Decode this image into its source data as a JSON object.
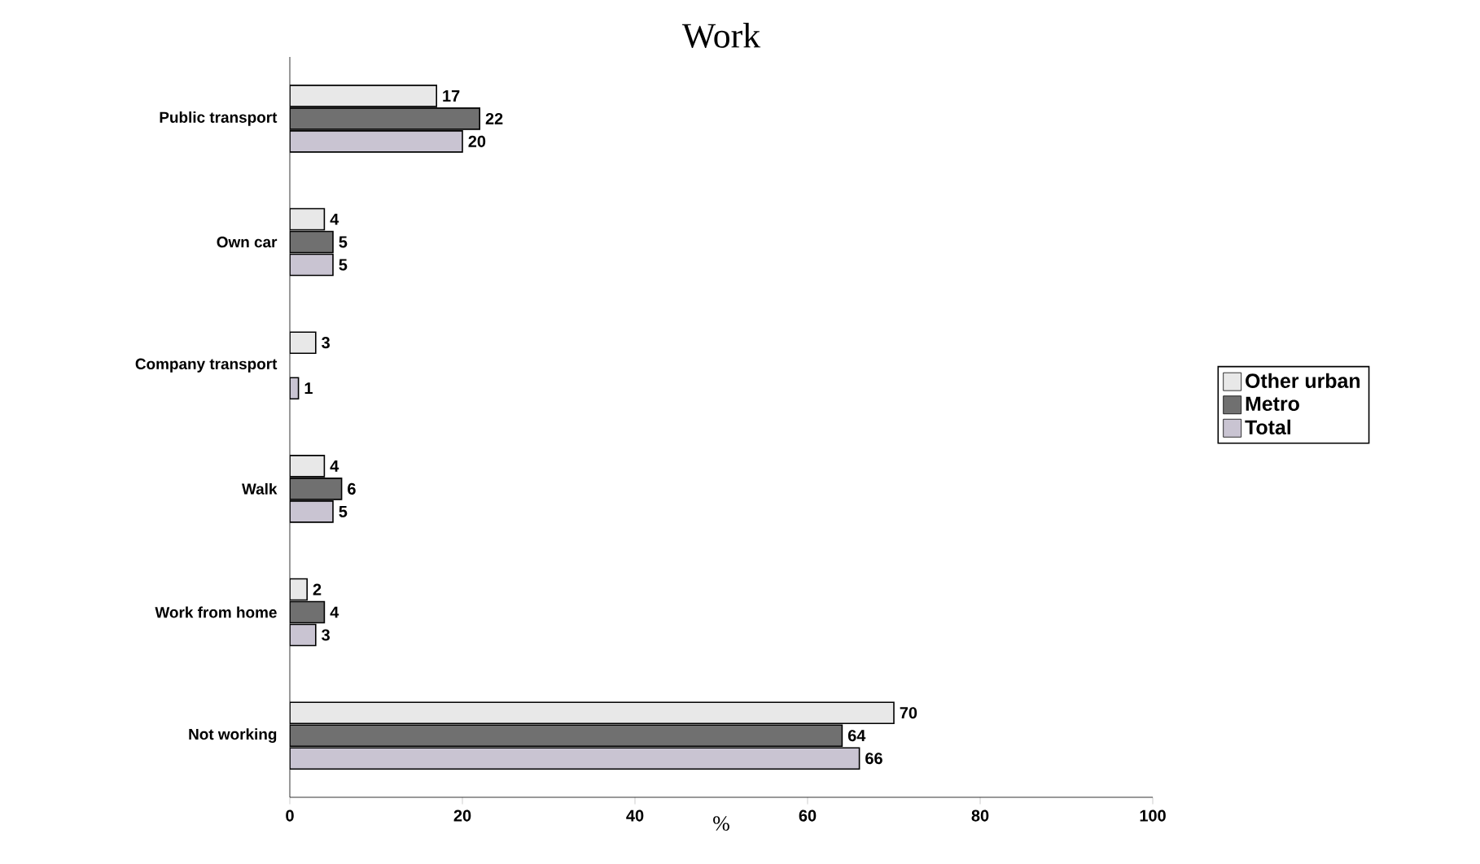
{
  "chart_data": {
    "type": "bar",
    "orientation": "horizontal",
    "title": "Work",
    "xlabel": "%",
    "categories": [
      "Public transport",
      "Own car",
      "Company transport",
      "Walk",
      "Work from home",
      "Not working"
    ],
    "series": [
      {
        "name": "Other urban",
        "color": "#e8e8e8",
        "values": [
          17,
          4,
          3,
          4,
          2,
          70
        ]
      },
      {
        "name": "Metro",
        "color": "#707070",
        "values": [
          22,
          5,
          null,
          6,
          4,
          64
        ]
      },
      {
        "name": "Total",
        "color": "#c9c4d2",
        "values": [
          20,
          5,
          1,
          5,
          3,
          66
        ]
      }
    ],
    "xlim": [
      0,
      100
    ],
    "xticks": [
      0,
      20,
      40,
      60,
      80,
      100
    ],
    "data_labels": true,
    "legend": "right",
    "grid": false
  }
}
